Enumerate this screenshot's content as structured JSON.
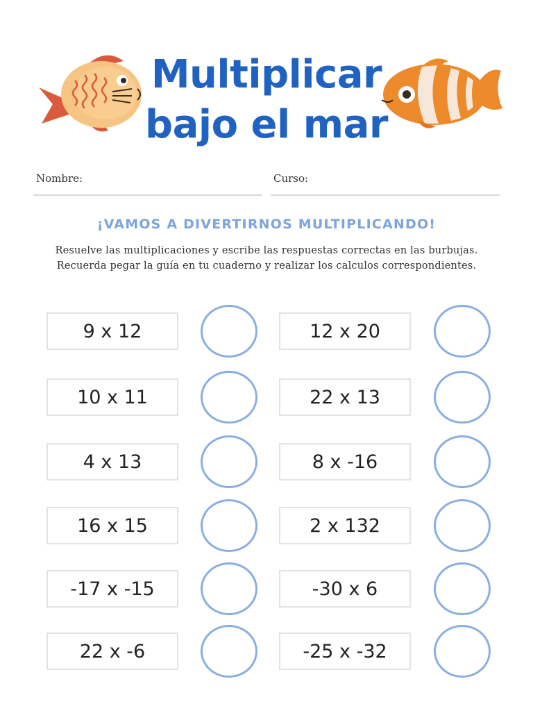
{
  "title": {
    "line1": "Multiplicar",
    "line2": "bajo el mar"
  },
  "form": {
    "name_label": "Nombre:",
    "course_label": "Curso:"
  },
  "subtitle": "¡VAMOS A DIVERTIRNOS MULTIPLICANDO!",
  "instructions": {
    "line1": "Resuelve las multiplicaciones y escribe las respuestas correctas en las burbujas.",
    "line2": "Recuerda pegar la guía en tu cuaderno y realizar los calculos correspondientes."
  },
  "exercises_left": [
    "9 x 12",
    "10 x 11",
    "4 x 13",
    "16 x 15",
    "-17 x -15",
    "22 x -6"
  ],
  "exercises_right": [
    "12 x 20",
    "22 x 13",
    "8 x -16",
    "2 x 132",
    "-30 x 6",
    "-25 x -32"
  ],
  "colors": {
    "title": "#1f62c2",
    "subtitle": "#7ea4dc",
    "bubble_border": "#8aaee0",
    "fish_left_body": "#f6c483",
    "fish_left_fins": "#d95a3c",
    "fish_right_body": "#ec8a2c"
  },
  "icons": {
    "left": "orange-fish-icon",
    "right": "clownfish-icon"
  }
}
